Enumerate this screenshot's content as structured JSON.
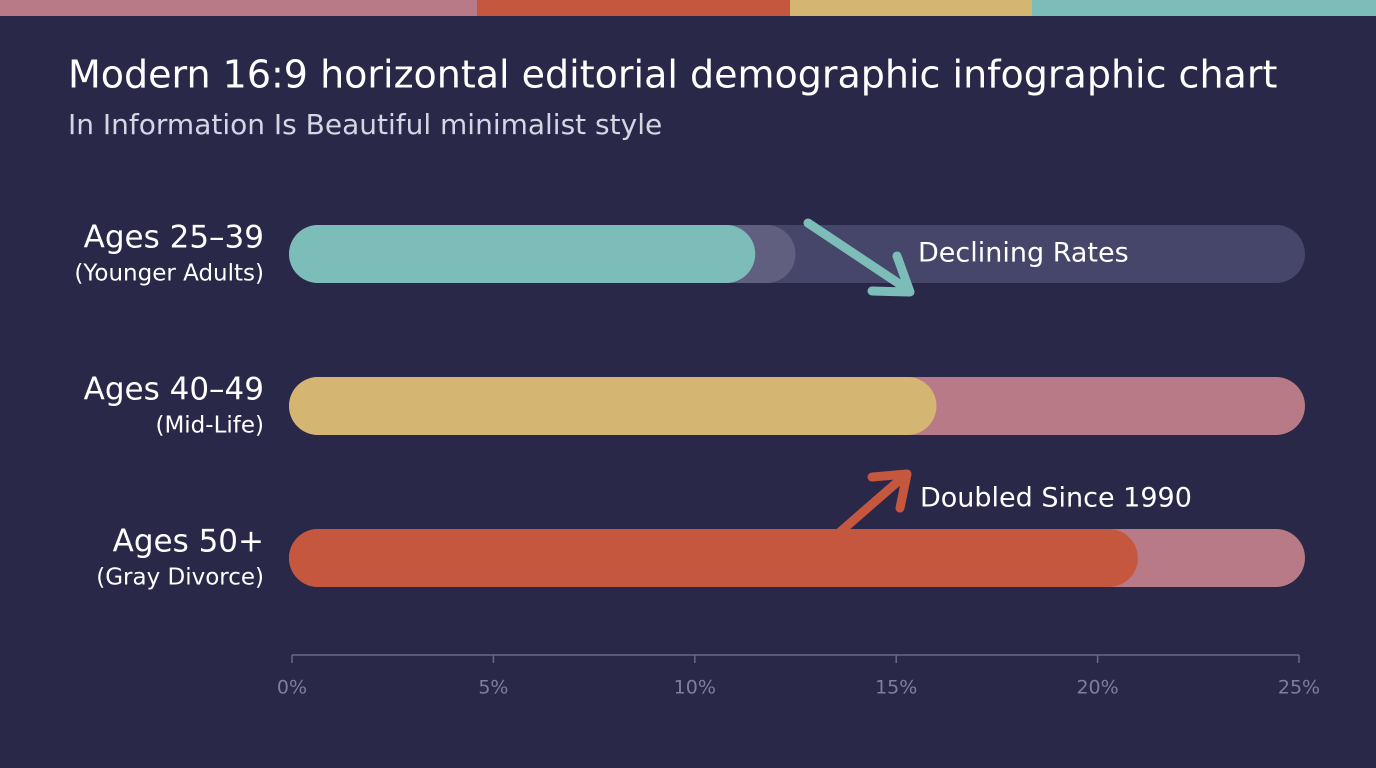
{
  "chart_data": {
    "type": "bar",
    "title": "Modern 16:9 horizontal editorial demographic infographic chart",
    "subtitle": "In Information Is Beautiful minimalist style",
    "categories": [
      "Ages 25–39",
      "Ages 40–49",
      "Ages 50+"
    ],
    "subcategories": [
      "(Younger Adults)",
      "(Mid-Life)",
      "(Gray Divorce)"
    ],
    "values": [
      11.5,
      16,
      21
    ],
    "previous_values": [
      12.5,
      null,
      null
    ],
    "colors": [
      "#7dbdb9",
      "#d4b572",
      "#c5573f"
    ],
    "track_colors": [
      "#46456a",
      "#b87a86",
      "#b87a86"
    ],
    "xlim": [
      0,
      25
    ],
    "xticks": [
      {
        "value": 0,
        "label": "0%"
      },
      {
        "value": 5,
        "label": "5%"
      },
      {
        "value": 10,
        "label": "10%"
      },
      {
        "value": 15,
        "label": "15%"
      },
      {
        "value": 20,
        "label": "20%"
      },
      {
        "value": 25,
        "label": "25%"
      }
    ],
    "annotations": [
      "Declining Rates",
      "Doubled Since 1990"
    ]
  }
}
